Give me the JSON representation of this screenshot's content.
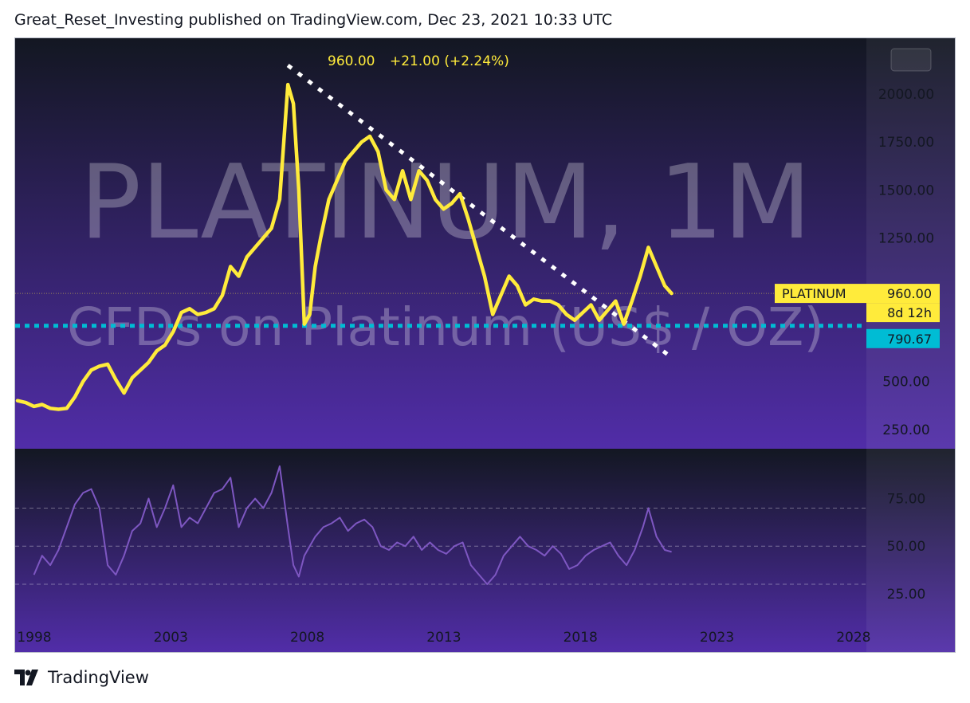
{
  "header": {
    "published_line": "Great_Reset_Investing published on TradingView.com, Dec 23, 2021 10:33 UTC"
  },
  "footer": {
    "brand": "TradingView"
  },
  "watermark": {
    "line1": "PLATINUM, 1M",
    "line2": "CFDs on Platinum (US$ / OZ)"
  },
  "legend": {
    "value": "960.00",
    "change": "+21.00 (+2.24%)"
  },
  "colors": {
    "price_line": "#ffeb3b",
    "rsi_line": "#7e57c2",
    "level_line": "#00bcd4",
    "trend_line": "#ffffff",
    "background_top": "#131722",
    "background_bottom": "#512da8",
    "axis_text": "#131722"
  },
  "chart_data": [
    {
      "type": "line",
      "name": "price",
      "series": [
        {
          "name": "PLATINUM",
          "x": [
            1998.0,
            1998.3,
            1998.6,
            1998.9,
            1999.2,
            1999.5,
            1999.8,
            2000.1,
            2000.4,
            2000.7,
            2001.0,
            2001.3,
            2001.6,
            2001.9,
            2002.2,
            2002.5,
            2002.8,
            2003.1,
            2003.4,
            2003.7,
            2004.0,
            2004.3,
            2004.6,
            2004.9,
            2005.2,
            2005.5,
            2005.8,
            2006.1,
            2006.4,
            2006.7,
            2007.0,
            2007.3,
            2007.6,
            2007.9,
            2008.1,
            2008.3,
            2008.5,
            2008.7,
            2008.9,
            2009.1,
            2009.4,
            2009.7,
            2010.0,
            2010.3,
            2010.6,
            2010.9,
            2011.2,
            2011.5,
            2011.8,
            2012.1,
            2012.4,
            2012.7,
            2013.0,
            2013.3,
            2013.6,
            2013.9,
            2014.2,
            2014.5,
            2014.8,
            2015.1,
            2015.4,
            2015.7,
            2016.0,
            2016.3,
            2016.6,
            2016.9,
            2017.2,
            2017.5,
            2017.8,
            2018.1,
            2018.4,
            2018.7,
            2019.0,
            2019.3,
            2019.6,
            2019.9,
            2020.2,
            2020.5,
            2020.8,
            2021.1,
            2021.4,
            2021.7,
            2021.95
          ],
          "values": [
            400,
            390,
            370,
            380,
            360,
            355,
            360,
            420,
            500,
            560,
            580,
            590,
            510,
            440,
            520,
            560,
            600,
            660,
            690,
            760,
            860,
            880,
            850,
            860,
            880,
            950,
            1100,
            1050,
            1150,
            1200,
            1250,
            1300,
            1450,
            2050,
            1950,
            1500,
            800,
            850,
            1100,
            1250,
            1450,
            1550,
            1650,
            1700,
            1750,
            1780,
            1700,
            1500,
            1450,
            1600,
            1450,
            1600,
            1550,
            1450,
            1400,
            1430,
            1480,
            1350,
            1200,
            1050,
            850,
            950,
            1050,
            1000,
            900,
            930,
            920,
            920,
            900,
            850,
            820,
            860,
            900,
            820,
            870,
            920,
            800,
            920,
            1050,
            1200,
            1100,
            1000,
            960
          ]
        }
      ],
      "trend_line": {
        "from": [
          2007.9,
          2150
        ],
        "to": [
          2022.0,
          620
        ]
      },
      "level_line": 790.67,
      "yticks": [
        "250.00",
        "500.00",
        "1250.00",
        "1500.00",
        "1750.00",
        "2000.00"
      ],
      "ylim": [
        170,
        2250
      ],
      "price_label": {
        "name": "PLATINUM",
        "value": "960.00",
        "countdown": "8d 12h"
      },
      "level_label": "790.67"
    },
    {
      "type": "line",
      "name": "rsi",
      "series": [
        {
          "name": "",
          "x": [
            1998.6,
            1998.9,
            1999.2,
            1999.5,
            1999.8,
            2000.1,
            2000.4,
            2000.7,
            2001.0,
            2001.3,
            2001.6,
            2001.9,
            2002.2,
            2002.5,
            2002.8,
            2003.1,
            2003.4,
            2003.7,
            2004.0,
            2004.3,
            2004.6,
            2004.9,
            2005.2,
            2005.5,
            2005.8,
            2006.1,
            2006.4,
            2006.7,
            2007.0,
            2007.3,
            2007.6,
            2007.9,
            2008.1,
            2008.3,
            2008.5,
            2008.7,
            2008.9,
            2009.2,
            2009.5,
            2009.8,
            2010.1,
            2010.4,
            2010.7,
            2011.0,
            2011.3,
            2011.6,
            2011.9,
            2012.2,
            2012.5,
            2012.8,
            2013.1,
            2013.4,
            2013.7,
            2014.0,
            2014.3,
            2014.6,
            2014.9,
            2015.2,
            2015.5,
            2015.8,
            2016.1,
            2016.4,
            2016.7,
            2017.0,
            2017.3,
            2017.6,
            2017.9,
            2018.2,
            2018.5,
            2018.8,
            2019.1,
            2019.4,
            2019.7,
            2020.0,
            2020.3,
            2020.6,
            2020.9,
            2021.1,
            2021.4,
            2021.7,
            2021.95
          ],
          "values": [
            35,
            45,
            40,
            48,
            60,
            72,
            78,
            80,
            70,
            40,
            35,
            45,
            58,
            62,
            75,
            60,
            70,
            82,
            60,
            65,
            62,
            70,
            78,
            80,
            86,
            60,
            70,
            75,
            70,
            78,
            92,
            60,
            40,
            34,
            45,
            50,
            55,
            60,
            62,
            65,
            58,
            62,
            64,
            60,
            50,
            48,
            52,
            50,
            55,
            48,
            52,
            48,
            46,
            50,
            52,
            40,
            35,
            30,
            35,
            45,
            50,
            55,
            50,
            48,
            45,
            50,
            46,
            38,
            40,
            45,
            48,
            50,
            52,
            45,
            40,
            48,
            60,
            70,
            55,
            48,
            47
          ]
        }
      ],
      "yticks": [
        "25.00",
        "50.00",
        "75.00"
      ],
      "ylim": [
        12,
        97
      ],
      "reference_levels": [
        30,
        50,
        70
      ]
    }
  ],
  "xticks": [
    "1998",
    "2003",
    "2008",
    "2013",
    "2018",
    "2023",
    "2028"
  ]
}
